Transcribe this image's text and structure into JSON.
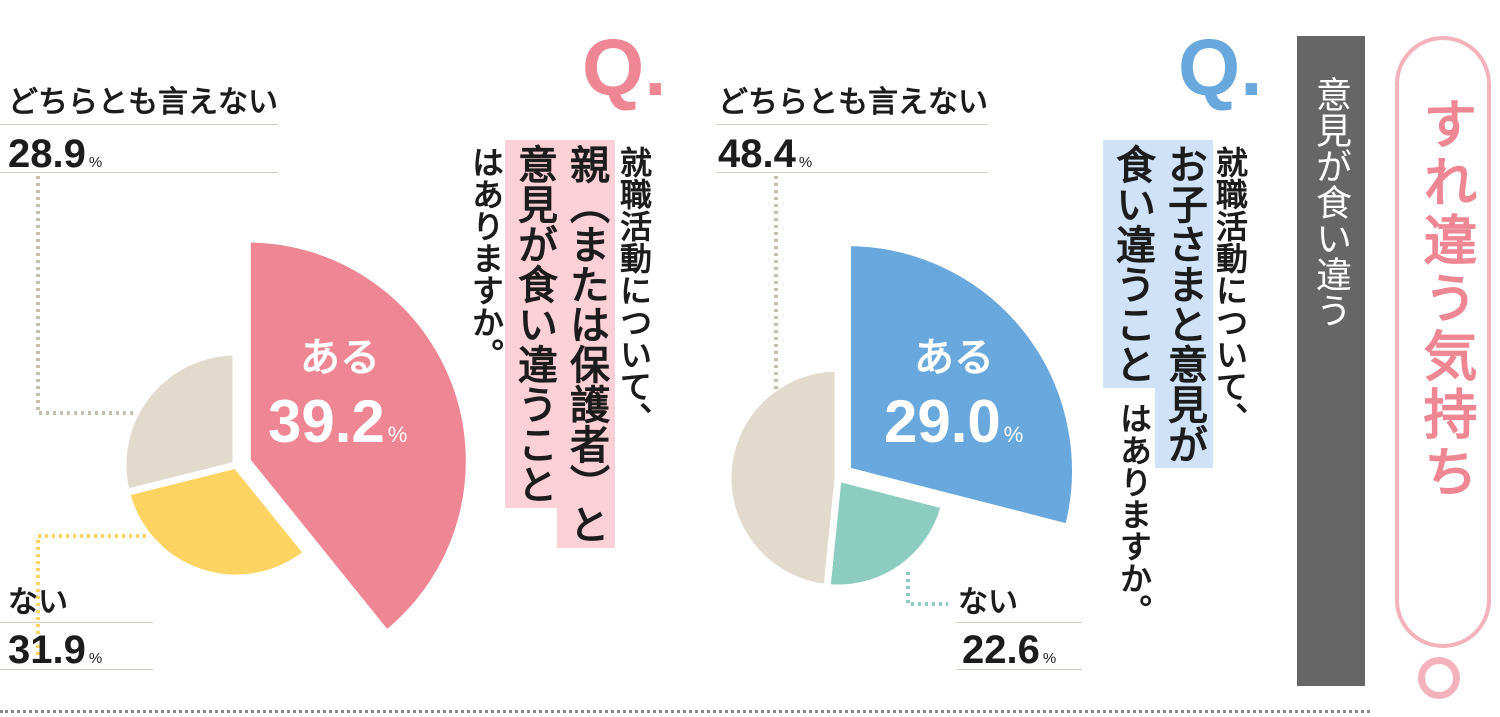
{
  "chart_data": [
    {
      "type": "pie",
      "title": "就職活動について、親（または保護者）と意見が食い違うことはありますか。",
      "categories": [
        "ある",
        "ない",
        "どちらとも言えない"
      ],
      "values": [
        39.2,
        31.9,
        28.9
      ],
      "unit": "%",
      "colors": [
        "#ee8693",
        "#fdd361",
        "#e2dacd"
      ],
      "highlight": "ある"
    },
    {
      "type": "pie",
      "title": "就職活動について、お子さまと意見が食い違うことはありますか。",
      "categories": [
        "ある",
        "ない",
        "どちらとも言えない"
      ],
      "values": [
        29.0,
        22.6,
        48.4
      ],
      "unit": "%",
      "colors": [
        "#68a8dd",
        "#8ccdc0",
        "#e2dacd"
      ],
      "highlight": "ある"
    }
  ],
  "left": {
    "q_mark": "Q.",
    "q_color": "#ee8693",
    "line1": "就職活動について、",
    "line2": "親（または保護者）と",
    "line3": "意見が食い違うこと",
    "line4": "はありますか。",
    "highlight_color": "#fbd0d6",
    "yes_label": "ある",
    "yes_value": "39.2",
    "no_label": "ない",
    "no_value": "31.9",
    "neutral_label": "どちらとも言えない",
    "neutral_value": "28.9",
    "pct_unit": "%"
  },
  "right": {
    "q_mark": "Q.",
    "q_color": "#68a8dd",
    "line1": "就職活動について、",
    "line2": "お子さまと意見が",
    "line3": "食い違うこと",
    "line4": "はありますか。",
    "highlight_color": "#cfe2f7",
    "yes_label": "ある",
    "yes_value": "29.0",
    "no_label": "ない",
    "no_value": "22.6",
    "neutral_label": "どちらとも言えない",
    "neutral_value": "48.4",
    "pct_unit": "%"
  },
  "side_tab": {
    "label": "意見が食い違う"
  },
  "badge": {
    "label": "すれ違う気持ち",
    "color": "#ee8693"
  }
}
